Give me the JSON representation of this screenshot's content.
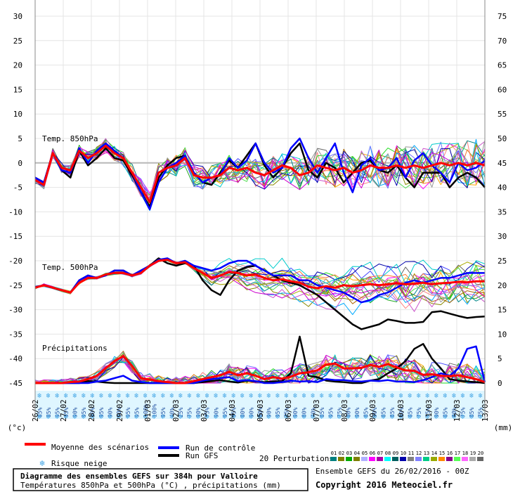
{
  "chart_data": {
    "type": "line",
    "y_left": {
      "ticks": [
        "30",
        "25",
        "20",
        "15",
        "10",
        "5",
        "0",
        "-5",
        "-10",
        "-15",
        "-20",
        "-25",
        "-30",
        "-35",
        "-40",
        "-45"
      ],
      "unit": "(°c)",
      "range": [
        -45,
        30
      ]
    },
    "y_right": {
      "ticks": [
        "75",
        "70",
        "65",
        "60",
        "55",
        "50",
        "45",
        "40",
        "35",
        "30",
        "25",
        "20",
        "15",
        "10",
        "5",
        "0"
      ],
      "unit": "(mm)",
      "range": [
        0,
        75
      ]
    },
    "x_dates": [
      "26/02",
      "27/02",
      "28/02",
      "29/02",
      "01/03",
      "02/03",
      "03/03",
      "04/03",
      "05/03",
      "06/03",
      "07/03",
      "08/03",
      "09/03",
      "10/03",
      "11/03",
      "12/03",
      "13/03"
    ],
    "panels": [
      {
        "label": "Temp. 850hPa",
        "label_y": 5
      },
      {
        "label": "Temp. 500hPa",
        "label_y": -21.3
      },
      {
        "label": "Précipitations",
        "label_y": -37.8
      }
    ],
    "snow_risk_percent": [
      "85%",
      "85%",
      "95%",
      "95%",
      "90%",
      "95%",
      "90%",
      "95%",
      "90%",
      "90%",
      "95%",
      "95%",
      "100%",
      "100%",
      "95%",
      "40%",
      "25%",
      "75%",
      "90%",
      "75%",
      "90%",
      "95%",
      "95%",
      "80%",
      "90%",
      "80%",
      "90%",
      "95%",
      "75%",
      "90%",
      "80%",
      "70%",
      "85%",
      "95%",
      "75%",
      "80%",
      "90%",
      "85%",
      "90%",
      "85%",
      "85%",
      "90%",
      "85%",
      "75%",
      "75%",
      "90%",
      "85%",
      "80%",
      "75%",
      "85%",
      "75%"
    ],
    "series": [
      {
        "name": "Moyenne des scénarios",
        "color": "#ff0000",
        "role": "mean",
        "t850": [
          -3.5,
          -4.5,
          2,
          -1,
          -1.5,
          2.5,
          1,
          2,
          3.5,
          2,
          1,
          -2,
          -5,
          -8,
          -2,
          -1,
          -0.5,
          1,
          -2.5,
          -3,
          -3,
          -2.5,
          -1,
          -1.5,
          -1,
          -2,
          -2.5,
          -1.5,
          -0.5,
          -1,
          -2.5,
          -2,
          -0.5,
          -1,
          -1.5,
          -1,
          -2,
          -1.5,
          -0.5,
          -1,
          -1,
          -0.5,
          -1,
          -0.5,
          -1,
          -0.5,
          0,
          -0.5,
          0,
          -0.5,
          0,
          -0.5
        ],
        "t500": [
          -25.5,
          -25,
          -25.5,
          -26,
          -26.5,
          -24.5,
          -23.5,
          -23.5,
          -22.8,
          -22.5,
          -22.5,
          -23,
          -22.5,
          -21,
          -20,
          -19.8,
          -20.5,
          -20.3,
          -21.5,
          -22.5,
          -23.5,
          -23,
          -22.3,
          -22.5,
          -23,
          -22.8,
          -23.5,
          -24,
          -23.8,
          -24.2,
          -24.5,
          -25.3,
          -25.6,
          -25.2,
          -25.5,
          -25,
          -25.2,
          -25,
          -24.8,
          -25,
          -24.8,
          -24.6,
          -24.8,
          -24.7,
          -24.5,
          -24.8,
          -24.6,
          -24.5,
          -24.3,
          -24.4,
          -24.2,
          -24.2
        ],
        "precip": [
          0,
          0,
          0,
          0,
          0.2,
          0.3,
          0.8,
          1.5,
          3,
          4.5,
          5.5,
          3.5,
          1,
          0.7,
          0.4,
          0.2,
          0,
          0,
          0.4,
          0.8,
          1.2,
          1.6,
          2.3,
          1.6,
          2,
          1.5,
          0.8,
          1.2,
          0.9,
          1.3,
          2,
          2.2,
          2.6,
          3.8,
          4,
          3,
          3,
          3.1,
          3.7,
          3.3,
          3.9,
          3.2,
          2.6,
          2.5,
          1.7,
          1.8,
          1.5,
          1.4,
          1.6,
          1.2,
          0.8,
          0.2
        ]
      },
      {
        "name": "Run de contrôle",
        "color": "#0000ff",
        "role": "control",
        "t850": [
          -3,
          -4,
          2,
          -1.5,
          -2,
          3,
          0,
          2.5,
          4,
          2.5,
          1,
          -2,
          -6,
          -9.5,
          -4,
          -1,
          0,
          1.5,
          -2,
          -4,
          -3,
          -2.5,
          1,
          -1,
          0.5,
          4,
          0,
          -2,
          -1,
          3,
          5,
          1,
          -2,
          1,
          4,
          -2,
          -6,
          -0.5,
          1,
          -1.5,
          -1,
          1,
          -3,
          0.5,
          2,
          -0.5,
          -2,
          -4,
          0,
          -1.5,
          -1,
          0.5
        ],
        "t500": [
          -25.5,
          -25,
          -25.5,
          -26,
          -26.5,
          -24,
          -23,
          -23.5,
          -23,
          -22,
          -22,
          -23,
          -22,
          -21,
          -19.8,
          -19.5,
          -20.5,
          -20,
          -21,
          -21.5,
          -22,
          -21.5,
          -20.5,
          -20,
          -20,
          -21,
          -22,
          -23,
          -23,
          -23,
          -24,
          -24,
          -25,
          -25.5,
          -26,
          -26.5,
          -27.5,
          -28.5,
          -28,
          -27,
          -26.5,
          -25.5,
          -24.5,
          -24,
          -24.5,
          -24,
          -23.5,
          -23.5,
          -23,
          -22.5,
          -22.5,
          -22.5
        ],
        "precip": [
          0,
          0,
          0,
          0,
          0,
          0,
          0,
          0.3,
          0.5,
          1,
          1.5,
          0.5,
          0.2,
          0,
          0,
          0,
          0,
          0,
          0,
          0.5,
          0.8,
          1,
          1.2,
          0.4,
          0.6,
          0.4,
          0,
          0,
          0.2,
          0.5,
          0.3,
          0.4,
          0.2,
          0.8,
          0.6,
          0.6,
          0.4,
          0.3,
          0.5,
          0.4,
          0.6,
          0.3,
          0.3,
          0.2,
          0.6,
          1.2,
          2,
          1.5,
          3,
          7,
          7.5,
          0.2
        ]
      },
      {
        "name": "Run GFS",
        "color": "#000000",
        "role": "gfs",
        "t850": [
          -3,
          -4,
          2,
          -1.5,
          -3,
          2.5,
          -0.5,
          1,
          3,
          1,
          0.5,
          -2.5,
          -6,
          -9,
          -3,
          -0.5,
          1,
          1.5,
          -2,
          -4,
          -4.5,
          -2,
          0.5,
          -1,
          1.5,
          4,
          -0.5,
          -3,
          -1,
          2,
          4,
          -1.5,
          -3,
          0,
          -1,
          -4,
          -2,
          0,
          0.5,
          -1.5,
          -2,
          -0.5,
          -3,
          -5,
          -2,
          -2,
          -2,
          -5,
          -3,
          -2,
          -3,
          -5
        ],
        "t500": [
          -25.5,
          -25,
          -25.5,
          -26,
          -26.5,
          -24,
          -23,
          -23.5,
          -23,
          -22,
          -22,
          -23,
          -22,
          -21,
          -19.5,
          -20.5,
          -21,
          -20.5,
          -21,
          -24,
          -26,
          -27,
          -24,
          -22,
          -21.3,
          -21,
          -22,
          -23,
          -24,
          -24.5,
          -25,
          -26,
          -27,
          -28.5,
          -30,
          -31.5,
          -33,
          -34,
          -33.5,
          -33,
          -32,
          -32.3,
          -32.7,
          -32.7,
          -32.5,
          -30.5,
          -30.3,
          -30.8,
          -31.3,
          -31.7,
          -31.5,
          -31.4
        ],
        "precip": [
          0,
          0,
          0,
          0,
          0,
          0,
          0.4,
          0.3,
          0.1,
          0,
          0,
          0,
          0,
          0,
          0,
          0,
          0,
          0,
          0,
          0.2,
          0.4,
          0.6,
          0.3,
          0.1,
          0.5,
          0.3,
          0.2,
          0.3,
          0.4,
          2,
          9.5,
          1.5,
          1.2,
          0.5,
          0.3,
          0.2,
          0,
          0,
          0.5,
          0.8,
          2,
          3,
          4.5,
          7,
          8,
          5,
          3,
          0.8,
          0.5,
          0.3,
          0.2,
          0
        ]
      }
    ],
    "perturbation_colors": [
      "#ff8080",
      "#22aa22",
      "#888800",
      "#22dd22",
      "#4444ff",
      "#ffaa00",
      "#666666",
      "#008888",
      "#ff00ff",
      "#00aaff",
      "#aa6600",
      "#7777ff",
      "#55dd55",
      "#aaaa00",
      "#ff7733",
      "#0000aa",
      "#00cccc",
      "#cc55cc",
      "#999999",
      "#cc00cc"
    ]
  },
  "legend": {
    "mean": "Moyenne des scénarios",
    "control": "Run de contrôle",
    "gfs": "Run GFS",
    "snow": "Risque neige",
    "perturbations": "20 Perturbations",
    "pert_numbers": [
      "01",
      "02",
      "03",
      "04",
      "05",
      "06",
      "07",
      "08",
      "09",
      "10",
      "11",
      "12",
      "13",
      "14",
      "15",
      "16",
      "17",
      "18",
      "19",
      "20"
    ],
    "pert_colors": [
      "#008080",
      "#808000",
      "#00aa00",
      "#7f7f00",
      "#b0b0ff",
      "#ff00ff",
      "#aa00aa",
      "#00ffff",
      "#006060",
      "#0000aa",
      "#808080",
      "#8080ff",
      "#00cc88",
      "#99aa00",
      "#ff8800",
      "#880088",
      "#55ff55",
      "#ff66ff",
      "#aaaaaa",
      "#666666"
    ]
  },
  "footer": {
    "title": "Diagramme des ensembles GEFS sur 384h pour Valloire",
    "subtitle": "Températures 850hPa et 500hPa (°C) , précipitations (mm)",
    "run": "Ensemble GEFS du 26/02/2016 - 00Z",
    "copyright": "Copyright 2016 Meteociel.fr"
  },
  "colors": {
    "grid": "#e4e4e4",
    "axis": "#888888",
    "snow_band": "#dff6ff",
    "snowflake": "#44a6e6"
  }
}
